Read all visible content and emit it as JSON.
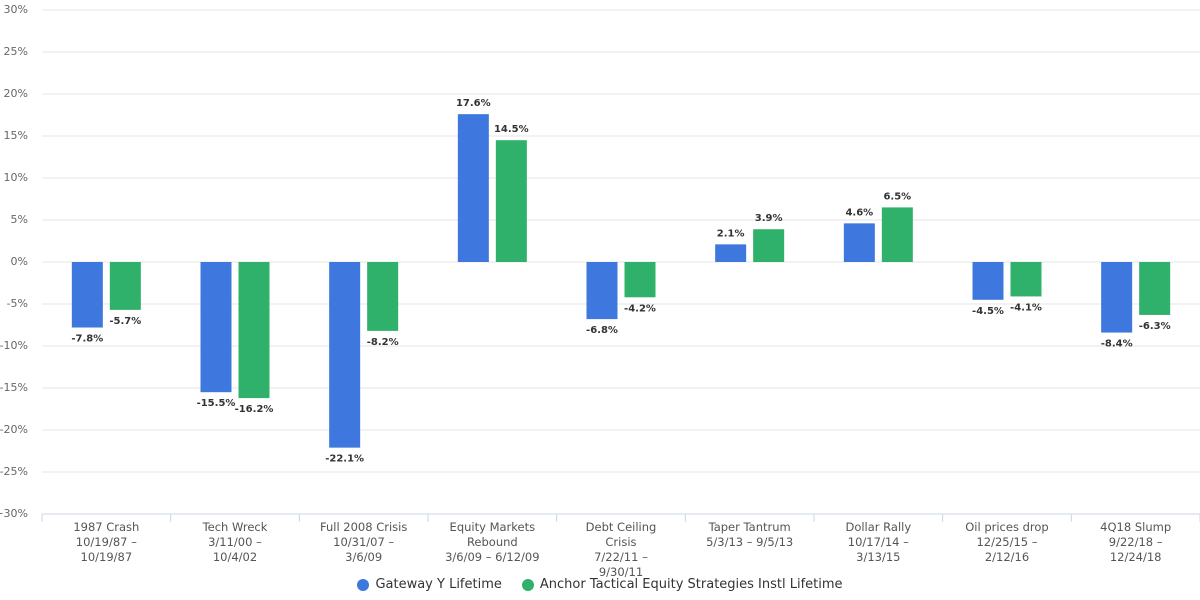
{
  "chart_data": {
    "type": "bar",
    "categories": [
      "1987 Crash",
      "Tech Wreck",
      "Full 2008 Crisis",
      "Equity Markets Rebound",
      "Debt Ceiling Crisis",
      "Taper Tantrum",
      "Dollar Rally",
      "Oil prices drop",
      "4Q18 Slump"
    ],
    "category_dates": [
      "10/19/87 – 10/19/87",
      "3/11/00 – 10/4/02",
      "10/31/07 – 3/6/09",
      "3/6/09 – 6/12/09",
      "7/22/11 – 9/30/11",
      "5/3/13 – 9/5/13",
      "10/17/14 – 3/13/15",
      "12/25/15 – 2/12/16",
      "9/22/18 – 12/24/18"
    ],
    "series": [
      {
        "name": "Gateway Y Lifetime",
        "color": "#3e78de",
        "values": [
          -7.8,
          -15.5,
          -22.1,
          17.6,
          -6.8,
          2.1,
          4.6,
          -4.5,
          -8.4
        ],
        "value_labels": [
          "-7.8%",
          "-15.5%",
          "-22.1%",
          "17.6%",
          "-6.8%",
          "2.1%",
          "4.6%",
          "-4.5%",
          "-8.4%"
        ]
      },
      {
        "name": "Anchor Tactical Equity Strategies Instl Lifetime",
        "color": "#2fb06b",
        "values": [
          -5.7,
          -16.2,
          -8.2,
          14.5,
          -4.2,
          3.9,
          6.5,
          -4.1,
          -6.3
        ],
        "value_labels": [
          "-5.7%",
          "-16.2%",
          "-8.2%",
          "14.5%",
          "-4.2%",
          "3.9%",
          "6.5%",
          "-4.1%",
          "-6.3%"
        ]
      }
    ],
    "ylim": [
      -30,
      30
    ],
    "yticks": [
      {
        "value": -30,
        "label": "−30%"
      },
      {
        "value": -25,
        "label": "-25%"
      },
      {
        "value": -20,
        "label": "-20%"
      },
      {
        "value": -15,
        "label": "-15%"
      },
      {
        "value": -10,
        "label": "-10%"
      },
      {
        "value": -5,
        "label": "-5%"
      },
      {
        "value": 0,
        "label": "0%"
      },
      {
        "value": 5,
        "label": "5%"
      },
      {
        "value": 10,
        "label": "10%"
      },
      {
        "value": 15,
        "label": "15%"
      },
      {
        "value": 20,
        "label": "20%"
      },
      {
        "value": 25,
        "label": "25%"
      },
      {
        "value": 30,
        "label": "30%"
      }
    ],
    "grid": true,
    "legend": "bottom"
  }
}
